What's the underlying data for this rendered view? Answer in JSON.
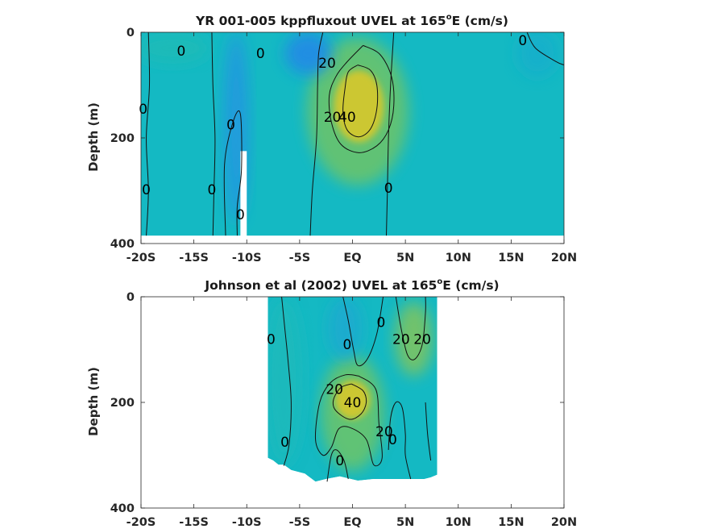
{
  "chart_data": [
    {
      "type": "contour",
      "title_main": "YR 001-005 kppfluxout UVEL at 165",
      "title_sup": "o",
      "title_tail": "E (cm/s)",
      "ylabel": "Depth (m)",
      "xlabel": "",
      "xlim": [
        -20,
        20
      ],
      "ylim": [
        0,
        400
      ],
      "y_reversed": true,
      "x_ticks": [
        -20,
        -15,
        -10,
        -5,
        0,
        5,
        10,
        15,
        20
      ],
      "x_tick_labels": [
        "-20S",
        "-15S",
        "-10S",
        "-5S",
        "EQ",
        "5N",
        "10N",
        "15N",
        "20N"
      ],
      "y_ticks": [
        0,
        200,
        400
      ],
      "y_tick_labels": [
        "0",
        "200",
        "400"
      ],
      "data_extent": {
        "x": [
          -20,
          20
        ],
        "depth": [
          0,
          385
        ]
      },
      "masked_regions": [
        {
          "x": [
            -10.6,
            -10.0
          ],
          "depth": [
            225,
            385
          ]
        }
      ],
      "fill_blobs": [
        {
          "x": 0.6,
          "depth": 140,
          "rx": 2.6,
          "ry": 75,
          "value": 42
        },
        {
          "x": 0.5,
          "depth": 150,
          "rx": 4.8,
          "ry": 140,
          "value": 22
        },
        {
          "x": -4.2,
          "depth": 40,
          "rx": 2.2,
          "ry": 40,
          "value": -25
        },
        {
          "x": -11.0,
          "depth": 180,
          "rx": 1.2,
          "ry": 180,
          "value": -18
        },
        {
          "x": 17.5,
          "depth": 40,
          "rx": 2.0,
          "ry": 45,
          "value": -5
        },
        {
          "x": -17.0,
          "depth": 30,
          "rx": 3.5,
          "ry": 30,
          "value": 3
        }
      ],
      "contours": [
        {
          "level": 40,
          "points": [
            [
              0.5,
              62
            ],
            [
              1.7,
              72
            ],
            [
              2.3,
              100
            ],
            [
              2.3,
              145
            ],
            [
              1.7,
              183
            ],
            [
              0.6,
              198
            ],
            [
              -0.5,
              185
            ],
            [
              -0.9,
              150
            ],
            [
              -0.7,
              105
            ],
            [
              -0.4,
              75
            ],
            [
              0.5,
              62
            ]
          ]
        },
        {
          "level": 20,
          "points": [
            [
              1.0,
              25
            ],
            [
              2.6,
              42
            ],
            [
              3.7,
              85
            ],
            [
              3.9,
              140
            ],
            [
              3.4,
              185
            ],
            [
              2.3,
              215
            ],
            [
              0.6,
              228
            ],
            [
              -1.1,
              212
            ],
            [
              -2.0,
              170
            ],
            [
              -2.2,
              120
            ],
            [
              -1.6,
              85
            ],
            [
              -0.6,
              58
            ],
            [
              1.0,
              25
            ]
          ]
        },
        {
          "level": 0,
          "points": [
            [
              -2.8,
              0
            ],
            [
              -3.2,
              40
            ],
            [
              -3.3,
              100
            ],
            [
              -3.4,
              200
            ],
            [
              -3.8,
              300
            ],
            [
              -4.0,
              385
            ]
          ]
        },
        {
          "level": 0,
          "points": [
            [
              3.9,
              0
            ],
            [
              3.6,
              100
            ],
            [
              3.4,
              200
            ],
            [
              3.3,
              300
            ],
            [
              3.2,
              385
            ]
          ]
        },
        {
          "level": 0,
          "points": [
            [
              -13.3,
              0
            ],
            [
              -13.2,
              100
            ],
            [
              -13.0,
              200
            ],
            [
              -13.1,
              300
            ],
            [
              -13.2,
              385
            ]
          ]
        },
        {
          "level": 0,
          "points": [
            [
              -19.3,
              0
            ],
            [
              -19.2,
              100
            ],
            [
              -19.5,
              200
            ],
            [
              -19.3,
              300
            ],
            [
              -19.5,
              385
            ]
          ]
        },
        {
          "level": 0,
          "points": [
            [
              -12.0,
              385
            ],
            [
              -12.1,
              250
            ],
            [
              -11.3,
              170
            ],
            [
              -10.6,
              155
            ],
            [
              -10.5,
              260
            ],
            [
              -10.9,
              330
            ],
            [
              -10.9,
              385
            ]
          ]
        },
        {
          "level": 0,
          "points": [
            [
              16.5,
              0
            ],
            [
              17.3,
              30
            ],
            [
              19.2,
              55
            ],
            [
              20,
              62
            ]
          ]
        }
      ],
      "contour_labels": [
        {
          "text": "0",
          "x": -16.2,
          "depth": 35
        },
        {
          "text": "0",
          "x": -8.7,
          "depth": 40
        },
        {
          "text": "20",
          "x": -2.4,
          "depth": 58
        },
        {
          "text": "20",
          "x": -1.9,
          "depth": 160
        },
        {
          "text": "40",
          "x": -0.5,
          "depth": 160
        },
        {
          "text": "0",
          "x": -19.8,
          "depth": 145
        },
        {
          "text": "0",
          "x": -11.5,
          "depth": 175
        },
        {
          "text": "0",
          "x": -19.5,
          "depth": 298
        },
        {
          "text": "0",
          "x": -13.3,
          "depth": 298
        },
        {
          "text": "0",
          "x": -10.6,
          "depth": 345
        },
        {
          "text": "0",
          "x": 3.4,
          "depth": 295
        },
        {
          "text": "0",
          "x": 16.1,
          "depth": 15
        }
      ]
    },
    {
      "type": "contour",
      "title_main": "Johnson et al (2002) UVEL at 165",
      "title_sup": "o",
      "title_tail": "E (cm/s)",
      "ylabel": "Depth (m)",
      "xlabel": "",
      "xlim": [
        -20,
        20
      ],
      "ylim": [
        0,
        400
      ],
      "y_reversed": true,
      "x_ticks": [
        -20,
        -15,
        -10,
        -5,
        0,
        5,
        10,
        15,
        20
      ],
      "x_tick_labels": [
        "-20S",
        "-15S",
        "-10S",
        "-5S",
        "EQ",
        "5N",
        "10N",
        "15N",
        "20N"
      ],
      "y_ticks": [
        0,
        200,
        400
      ],
      "y_tick_labels": [
        "0",
        "200",
        "400"
      ],
      "data_extent": {
        "x": [
          -8,
          8
        ],
        "depth": [
          0,
          365
        ]
      },
      "bottom_profile": [
        [
          -8.0,
          305
        ],
        [
          -7.5,
          310
        ],
        [
          -7.0,
          318
        ],
        [
          -6.5,
          318
        ],
        [
          -5.8,
          328
        ],
        [
          -4.5,
          335
        ],
        [
          -3.5,
          350
        ],
        [
          -2.5,
          345
        ],
        [
          -1.2,
          340
        ],
        [
          0.5,
          348
        ],
        [
          2.0,
          345
        ],
        [
          3.8,
          345
        ],
        [
          5.5,
          345
        ],
        [
          6.8,
          345
        ],
        [
          7.4,
          342
        ],
        [
          8.0,
          337
        ]
      ],
      "fill_blobs": [
        {
          "x": 0.0,
          "depth": 195,
          "rx": 1.8,
          "ry": 40,
          "value": 42
        },
        {
          "x": 0.0,
          "depth": 220,
          "rx": 3.0,
          "ry": 110,
          "value": 22
        },
        {
          "x": 5.8,
          "depth": 80,
          "rx": 1.8,
          "ry": 70,
          "value": 25
        },
        {
          "x": -0.7,
          "depth": 60,
          "rx": 1.6,
          "ry": 60,
          "value": -8
        },
        {
          "x": -6.5,
          "depth": 160,
          "rx": 1.8,
          "ry": 160,
          "value": 2
        }
      ],
      "contours": [
        {
          "level": 40,
          "points": [
            [
              -0.1,
              165
            ],
            [
              1.0,
              178
            ],
            [
              1.3,
              200
            ],
            [
              0.8,
              222
            ],
            [
              -0.3,
              232
            ],
            [
              -1.6,
              215
            ],
            [
              -1.8,
              195
            ],
            [
              -1.1,
              172
            ],
            [
              -0.1,
              165
            ]
          ]
        },
        {
          "level": 20,
          "points": [
            [
              0.6,
              150
            ],
            [
              2.2,
              175
            ],
            [
              2.5,
              240
            ],
            [
              2.8,
              305
            ],
            [
              2.0,
              318
            ],
            [
              1.3,
              270
            ],
            [
              -0.2,
              248
            ],
            [
              -1.3,
              250
            ],
            [
              -2.0,
              285
            ],
            [
              -2.8,
              300
            ],
            [
              -3.5,
              270
            ],
            [
              -3.1,
              200
            ],
            [
              -2.1,
              163
            ],
            [
              -0.7,
              148
            ],
            [
              0.6,
              150
            ]
          ]
        },
        {
          "level": 20,
          "points": [
            [
              4.1,
              0
            ],
            [
              4.6,
              60
            ],
            [
              5.2,
              110
            ],
            [
              5.9,
              118
            ],
            [
              6.6,
              90
            ],
            [
              6.9,
              30
            ],
            [
              6.9,
              0
            ]
          ]
        },
        {
          "level": 0,
          "points": [
            [
              -0.9,
              0
            ],
            [
              -0.4,
              45
            ],
            [
              0.1,
              100
            ],
            [
              0.5,
              130
            ],
            [
              1.4,
              118
            ],
            [
              2.3,
              70
            ],
            [
              2.9,
              0
            ]
          ]
        },
        {
          "level": 0,
          "points": [
            [
              -6.7,
              0
            ],
            [
              -6.4,
              60
            ],
            [
              -6.1,
              120
            ],
            [
              -5.8,
              200
            ],
            [
              -6.0,
              280
            ],
            [
              -6.5,
              320
            ]
          ]
        },
        {
          "level": 0,
          "points": [
            [
              3.4,
              290
            ],
            [
              3.6,
              230
            ],
            [
              4.1,
              200
            ],
            [
              4.7,
              210
            ],
            [
              5.0,
              260
            ],
            [
              5.0,
              300
            ],
            [
              5.5,
              345
            ]
          ]
        },
        {
          "level": 0,
          "points": [
            [
              6.9,
              200
            ],
            [
              7.1,
              260
            ],
            [
              7.4,
              310
            ]
          ]
        },
        {
          "level": 0,
          "points": [
            [
              -2.4,
              350
            ],
            [
              -2.0,
              300
            ],
            [
              -1.5,
              290
            ],
            [
              -0.8,
              310
            ],
            [
              -0.4,
              345
            ]
          ]
        }
      ],
      "contour_labels": [
        {
          "text": "0",
          "x": -7.7,
          "depth": 80
        },
        {
          "text": "0",
          "x": -0.5,
          "depth": 90
        },
        {
          "text": "0",
          "x": 2.7,
          "depth": 48
        },
        {
          "text": "20",
          "x": 4.6,
          "depth": 80
        },
        {
          "text": "20",
          "x": 6.6,
          "depth": 80
        },
        {
          "text": "20",
          "x": -1.7,
          "depth": 175
        },
        {
          "text": "40",
          "x": 0.0,
          "depth": 200
        },
        {
          "text": "20",
          "x": 3.0,
          "depth": 255
        },
        {
          "text": "0",
          "x": 3.8,
          "depth": 270
        },
        {
          "text": "0",
          "x": -6.4,
          "depth": 275
        },
        {
          "text": "0",
          "x": -1.2,
          "depth": 310
        }
      ]
    }
  ]
}
